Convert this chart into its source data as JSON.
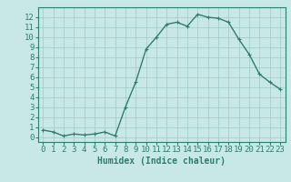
{
  "x": [
    0,
    1,
    2,
    3,
    4,
    5,
    6,
    7,
    8,
    9,
    10,
    11,
    12,
    13,
    14,
    15,
    16,
    17,
    18,
    19,
    20,
    21,
    22,
    23
  ],
  "y": [
    0.7,
    0.5,
    0.1,
    0.3,
    0.2,
    0.3,
    0.5,
    0.1,
    3.0,
    5.5,
    8.8,
    10.0,
    11.3,
    11.5,
    11.1,
    12.3,
    12.0,
    11.9,
    11.5,
    9.8,
    8.3,
    6.3,
    5.5,
    4.8
  ],
  "line_color": "#2e7d6e",
  "marker": "+",
  "bg_color": "#c8e8e8",
  "grid_color": "#a0c8c8",
  "xlabel": "Humidex (Indice chaleur)",
  "xlim": [
    -0.5,
    23.5
  ],
  "ylim": [
    -0.5,
    13.0
  ],
  "xtick_labels": [
    "0",
    "1",
    "2",
    "3",
    "4",
    "5",
    "6",
    "7",
    "8",
    "9",
    "10",
    "11",
    "12",
    "13",
    "14",
    "15",
    "16",
    "17",
    "18",
    "19",
    "20",
    "21",
    "22",
    "23"
  ],
  "ytick_values": [
    0,
    1,
    2,
    3,
    4,
    5,
    6,
    7,
    8,
    9,
    10,
    11,
    12
  ],
  "xlabel_fontsize": 7,
  "tick_fontsize": 6.5,
  "line_width": 1.0,
  "marker_size": 3.5
}
